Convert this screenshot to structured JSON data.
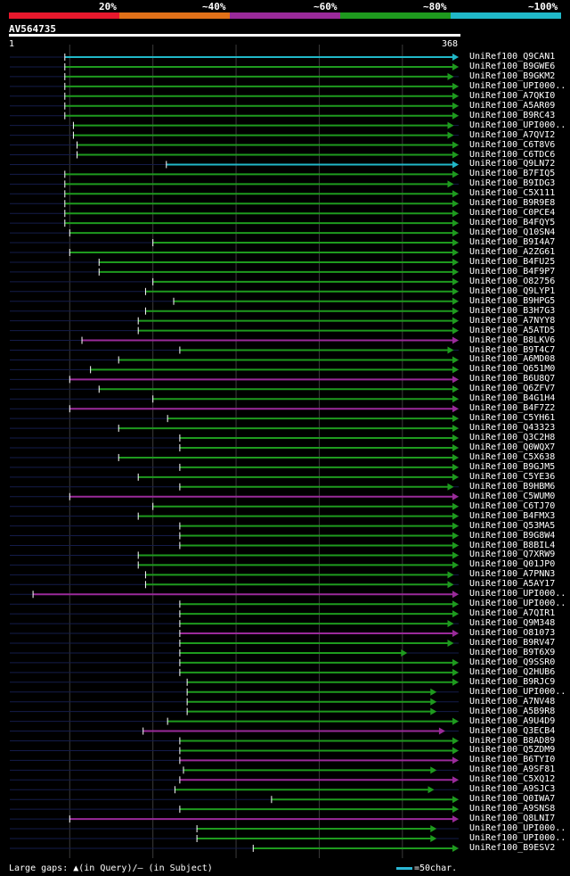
{
  "legend": {
    "labels": [
      "20%",
      "~40%",
      "~60%",
      "~80%",
      "~100%"
    ],
    "colors": [
      "#e8182c",
      "#e07018",
      "#9a2a9a",
      "#1e9a1e",
      "#20b8c8"
    ]
  },
  "query": {
    "name": "AV564735",
    "start": "1",
    "end": "368"
  },
  "footer": {
    "gaps_text": "Large gaps: ▲(in Query)/– (in Subject)",
    "scale_text": "=50char."
  },
  "chart_data": {
    "type": "alignment-overview",
    "query_length": 368,
    "identity_bins": [
      "20%",
      "~40%",
      "~60%",
      "~80%",
      "~100%"
    ],
    "hits": [
      {
        "name": "UniRef100_Q9CAN1",
        "start": 46,
        "end": 368,
        "id": "~100%"
      },
      {
        "name": "UniRef100_B9GWE6",
        "start": 46,
        "end": 368,
        "id": "~80%"
      },
      {
        "name": "UniRef100_B9GKM2",
        "start": 46,
        "end": 364,
        "id": "~80%"
      },
      {
        "name": "UniRef100_UPI000..",
        "start": 46,
        "end": 368,
        "id": "~80%"
      },
      {
        "name": "UniRef100_A7QKI0",
        "start": 46,
        "end": 368,
        "id": "~80%"
      },
      {
        "name": "UniRef100_A5AR09",
        "start": 46,
        "end": 368,
        "id": "~80%"
      },
      {
        "name": "UniRef100_B9RC43",
        "start": 46,
        "end": 368,
        "id": "~80%"
      },
      {
        "name": "UniRef100_UPI000..",
        "start": 53,
        "end": 364,
        "id": "~80%"
      },
      {
        "name": "UniRef100_A7QVI2",
        "start": 53,
        "end": 364,
        "id": "~80%"
      },
      {
        "name": "UniRef100_C6T8V6",
        "start": 56,
        "end": 368,
        "id": "~80%"
      },
      {
        "name": "UniRef100_C6TDC6",
        "start": 56,
        "end": 368,
        "id": "~80%"
      },
      {
        "name": "UniRef100_Q9LN72",
        "start": 129,
        "end": 368,
        "id": "~100%"
      },
      {
        "name": "UniRef100_B7FIQ5",
        "start": 46,
        "end": 368,
        "id": "~80%"
      },
      {
        "name": "UniRef100_B9IDG3",
        "start": 46,
        "end": 364,
        "id": "~80%"
      },
      {
        "name": "UniRef100_C5X111",
        "start": 46,
        "end": 368,
        "id": "~80%"
      },
      {
        "name": "UniRef100_B9R9E8",
        "start": 46,
        "end": 368,
        "id": "~80%"
      },
      {
        "name": "UniRef100_C0PCE4",
        "start": 46,
        "end": 368,
        "id": "~80%"
      },
      {
        "name": "UniRef100_B4FQY5",
        "start": 46,
        "end": 368,
        "id": "~80%"
      },
      {
        "name": "UniRef100_Q10SN4",
        "start": 50,
        "end": 368,
        "id": "~80%"
      },
      {
        "name": "UniRef100_B9I4A7",
        "start": 118,
        "end": 368,
        "id": "~80%"
      },
      {
        "name": "UniRef100_A2ZG61",
        "start": 50,
        "end": 368,
        "id": "~80%"
      },
      {
        "name": "UniRef100_B4FU25",
        "start": 74,
        "end": 368,
        "id": "~80%"
      },
      {
        "name": "UniRef100_B4F9P7",
        "start": 74,
        "end": 368,
        "id": "~80%"
      },
      {
        "name": "UniRef100_O82756",
        "start": 118,
        "end": 368,
        "id": "~80%"
      },
      {
        "name": "UniRef100_Q9LYP1",
        "start": 112,
        "end": 368,
        "id": "~80%"
      },
      {
        "name": "UniRef100_B9HPG5",
        "start": 135,
        "end": 368,
        "id": "~80%"
      },
      {
        "name": "UniRef100_B3H7G3",
        "start": 112,
        "end": 368,
        "id": "~80%"
      },
      {
        "name": "UniRef100_A7NYY8",
        "start": 106,
        "end": 368,
        "id": "~80%"
      },
      {
        "name": "UniRef100_A5ATD5",
        "start": 106,
        "end": 368,
        "id": "~80%"
      },
      {
        "name": "UniRef100_B8LKV6",
        "start": 60,
        "end": 368,
        "id": "~60%"
      },
      {
        "name": "UniRef100_B9T4C7",
        "start": 140,
        "end": 364,
        "id": "~80%"
      },
      {
        "name": "UniRef100_A6MD08",
        "start": 90,
        "end": 368,
        "id": "~80%"
      },
      {
        "name": "UniRef100_Q651M0",
        "start": 67,
        "end": 368,
        "id": "~80%"
      },
      {
        "name": "UniRef100_B6U8Q7",
        "start": 50,
        "end": 368,
        "id": "~60%"
      },
      {
        "name": "UniRef100_Q6ZFV7",
        "start": 74,
        "end": 368,
        "id": "~80%"
      },
      {
        "name": "UniRef100_B4G1H4",
        "start": 118,
        "end": 368,
        "id": "~80%"
      },
      {
        "name": "UniRef100_B4F7Z2",
        "start": 50,
        "end": 368,
        "id": "~60%"
      },
      {
        "name": "UniRef100_C5YH61",
        "start": 130,
        "end": 368,
        "id": "~80%"
      },
      {
        "name": "UniRef100_Q43323",
        "start": 90,
        "end": 368,
        "id": "~80%"
      },
      {
        "name": "UniRef100_Q3C2H8",
        "start": 140,
        "end": 368,
        "id": "~80%"
      },
      {
        "name": "UniRef100_Q0WQX7",
        "start": 140,
        "end": 368,
        "id": "~80%"
      },
      {
        "name": "UniRef100_C5X638",
        "start": 90,
        "end": 368,
        "id": "~80%"
      },
      {
        "name": "UniRef100_B9GJM5",
        "start": 140,
        "end": 368,
        "id": "~80%"
      },
      {
        "name": "UniRef100_C5YE36",
        "start": 106,
        "end": 368,
        "id": "~80%"
      },
      {
        "name": "UniRef100_B9HBM6",
        "start": 140,
        "end": 364,
        "id": "~80%"
      },
      {
        "name": "UniRef100_C5WUM0",
        "start": 50,
        "end": 368,
        "id": "~60%"
      },
      {
        "name": "UniRef100_C6TJ70",
        "start": 118,
        "end": 368,
        "id": "~80%"
      },
      {
        "name": "UniRef100_B4FMX3",
        "start": 106,
        "end": 368,
        "id": "~80%"
      },
      {
        "name": "UniRef100_Q53MA5",
        "start": 140,
        "end": 368,
        "id": "~80%"
      },
      {
        "name": "UniRef100_B9G8W4",
        "start": 140,
        "end": 368,
        "id": "~80%"
      },
      {
        "name": "UniRef100_B8BIL4",
        "start": 140,
        "end": 368,
        "id": "~80%"
      },
      {
        "name": "UniRef100_Q7XRW9",
        "start": 106,
        "end": 368,
        "id": "~80%"
      },
      {
        "name": "UniRef100_Q01JP0",
        "start": 106,
        "end": 368,
        "id": "~80%"
      },
      {
        "name": "UniRef100_A7PNN3",
        "start": 112,
        "end": 364,
        "id": "~80%"
      },
      {
        "name": "UniRef100_A5AY17",
        "start": 112,
        "end": 364,
        "id": "~80%"
      },
      {
        "name": "UniRef100_UPI000..",
        "start": 20,
        "end": 368,
        "id": "~60%"
      },
      {
        "name": "UniRef100_UPI000..",
        "start": 140,
        "end": 368,
        "id": "~80%"
      },
      {
        "name": "UniRef100_A7QIR1",
        "start": 140,
        "end": 368,
        "id": "~80%"
      },
      {
        "name": "UniRef100_Q9M348",
        "start": 140,
        "end": 364,
        "id": "~80%"
      },
      {
        "name": "UniRef100_O81073",
        "start": 140,
        "end": 368,
        "id": "~60%"
      },
      {
        "name": "UniRef100_B9RV47",
        "start": 140,
        "end": 364,
        "id": "~80%"
      },
      {
        "name": "UniRef100_B9T6X9",
        "start": 140,
        "end": 326,
        "id": "~80%"
      },
      {
        "name": "UniRef100_Q9SSR0",
        "start": 140,
        "end": 368,
        "id": "~80%"
      },
      {
        "name": "UniRef100_Q2HUB6",
        "start": 140,
        "end": 368,
        "id": "~80%"
      },
      {
        "name": "UniRef100_B9RJC9",
        "start": 146,
        "end": 368,
        "id": "~80%"
      },
      {
        "name": "UniRef100_UPI000..",
        "start": 146,
        "end": 350,
        "id": "~80%"
      },
      {
        "name": "UniRef100_A7NV48",
        "start": 146,
        "end": 350,
        "id": "~80%"
      },
      {
        "name": "UniRef100_A5B9R8",
        "start": 146,
        "end": 350,
        "id": "~80%"
      },
      {
        "name": "UniRef100_A9U4D9",
        "start": 130,
        "end": 368,
        "id": "~80%"
      },
      {
        "name": "UniRef100_Q3ECB4",
        "start": 110,
        "end": 357,
        "id": "~60%"
      },
      {
        "name": "UniRef100_B8AD89",
        "start": 140,
        "end": 368,
        "id": "~80%"
      },
      {
        "name": "UniRef100_Q5ZDM9",
        "start": 140,
        "end": 368,
        "id": "~80%"
      },
      {
        "name": "UniRef100_B6TYI0",
        "start": 140,
        "end": 368,
        "id": "~60%"
      },
      {
        "name": "UniRef100_A9SF81",
        "start": 143,
        "end": 350,
        "id": "~80%"
      },
      {
        "name": "UniRef100_C5XQ12",
        "start": 140,
        "end": 368,
        "id": "~60%"
      },
      {
        "name": "UniRef100_A9SJC3",
        "start": 136,
        "end": 348,
        "id": "~80%"
      },
      {
        "name": "UniRef100_Q0IWA7",
        "start": 215,
        "end": 368,
        "id": "~80%"
      },
      {
        "name": "UniRef100_A9SNS8",
        "start": 140,
        "end": 368,
        "id": "~80%"
      },
      {
        "name": "UniRef100_Q8LNI7",
        "start": 50,
        "end": 368,
        "id": "~60%"
      },
      {
        "name": "UniRef100_UPI000..",
        "start": 154,
        "end": 350,
        "id": "~80%"
      },
      {
        "name": "UniRef100_UPI000..",
        "start": 154,
        "end": 350,
        "id": "~80%"
      },
      {
        "name": "UniRef100_B9ESV2",
        "start": 200,
        "end": 368,
        "id": "~80%"
      }
    ]
  }
}
